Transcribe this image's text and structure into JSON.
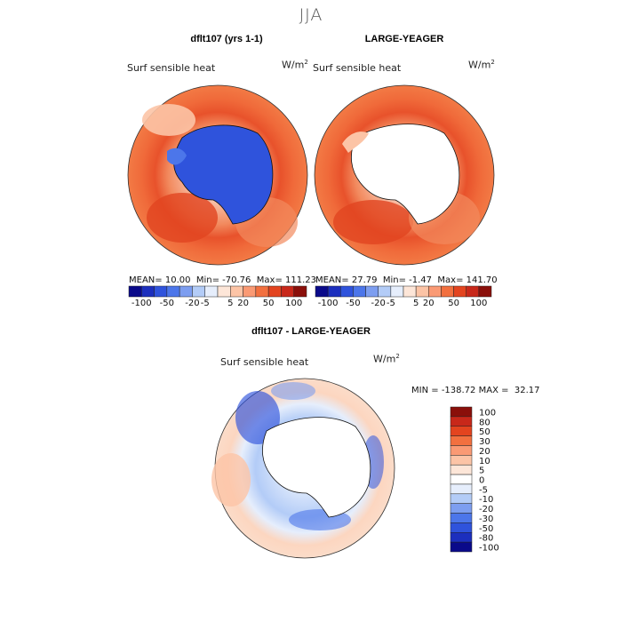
{
  "season": "JJA",
  "panels": [
    {
      "title": "dflt107 (yrs 1-1)",
      "variable": "Surf sensible heat",
      "units": "W/m",
      "units_exp": "2",
      "stats": {
        "mean_label": "MEAN=",
        "mean": "10.00",
        "min_label": "Min=",
        "min": "-70.76",
        "max_label": "Max=",
        "max": "111.23"
      }
    },
    {
      "title": "LARGE-YEAGER",
      "variable": "Surf sensible heat",
      "units": "W/m",
      "units_exp": "2",
      "stats": {
        "mean_label": "MEAN=",
        "mean": "27.79",
        "min_label": "Min=",
        "min": "-1.47",
        "max_label": "Max=",
        "max": "141.70"
      }
    },
    {
      "title": "dflt107 - LARGE-YEAGER",
      "variable": "Surf sensible heat",
      "units": "W/m",
      "units_exp": "2",
      "stats": {
        "min_label": "MIN =",
        "min": "-138.72",
        "max_label": "MAX =",
        "max": "32.17"
      }
    }
  ],
  "horiz_colorbar": {
    "colors": [
      "#0a0a8a",
      "#1c2fbe",
      "#2f53dc",
      "#4c76ea",
      "#7d9ef0",
      "#b3ccf7",
      "#e6eefc",
      "#fde6d8",
      "#fcc4a6",
      "#fa9a74",
      "#f2703f",
      "#e3441f",
      "#c8281a",
      "#8a0f0a"
    ],
    "labels": [
      "-100",
      "-50",
      "-20",
      "-5",
      "5",
      "20",
      "50",
      "100"
    ]
  },
  "vert_colorbar": {
    "colors_top_to_bottom": [
      "#8a0f0a",
      "#c8281a",
      "#e3441f",
      "#f2703f",
      "#fa9a74",
      "#fcc4a6",
      "#fde6d8",
      "#ffffff",
      "#e6eefc",
      "#b3ccf7",
      "#7d9ef0",
      "#4c76ea",
      "#2f53dc",
      "#1c2fbe",
      "#0a0a8a"
    ],
    "labels": [
      "100",
      "80",
      "50",
      "30",
      "20",
      "10",
      "5",
      "0",
      "-5",
      "-10",
      "-20",
      "-30",
      "-50",
      "-80",
      "-100"
    ]
  }
}
